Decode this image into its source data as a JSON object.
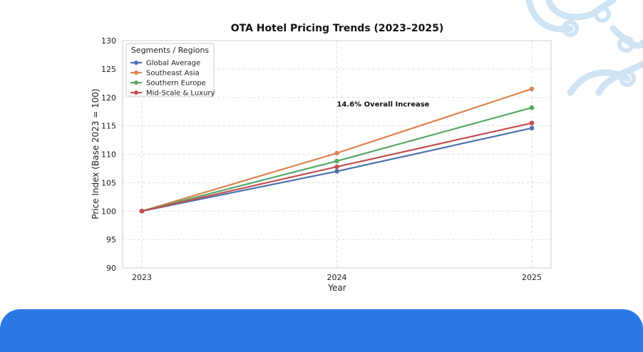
{
  "colors": {
    "background": "#ffffff",
    "banner": "#2b78e4",
    "decoration": "#cfe3f3"
  },
  "chart_data": {
    "type": "line",
    "title": "OTA Hotel Pricing Trends (2023–2025)",
    "xlabel": "Year",
    "ylabel": "Price Index (Base 2023 = 100)",
    "x": [
      2023,
      2024,
      2025
    ],
    "x_tick_labels": [
      "2023",
      "2024",
      "2025"
    ],
    "ylim": [
      90,
      130
    ],
    "y_ticks": [
      90,
      95,
      100,
      105,
      110,
      115,
      120,
      125,
      130
    ],
    "grid": true,
    "legend": {
      "title": "Segments / Regions",
      "placement": "top-left"
    },
    "series": [
      {
        "name": "Global Average",
        "color": "#4c72b0",
        "values": [
          100,
          107.0,
          114.6
        ]
      },
      {
        "name": "Southeast Asia",
        "color": "#dd8452",
        "values": [
          100,
          110.2,
          121.5
        ]
      },
      {
        "name": "Southern Europe",
        "color": "#55a868",
        "values": [
          100,
          108.8,
          118.2
        ]
      },
      {
        "name": "Mid-Scale & Luxury",
        "color": "#c44e52",
        "values": [
          100,
          107.8,
          115.5
        ]
      }
    ],
    "annotations": [
      {
        "text": "14.6% Overall Increase",
        "x": 2024,
        "y": 118.4
      }
    ]
  }
}
